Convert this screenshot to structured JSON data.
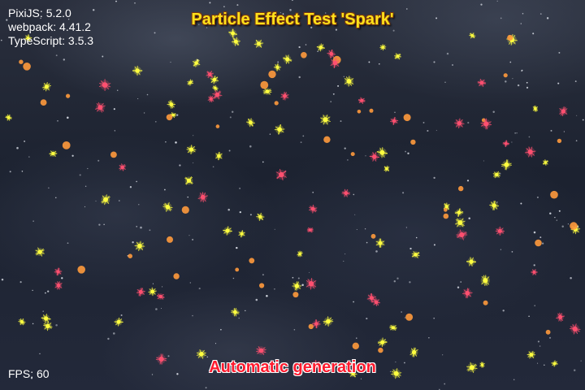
{
  "versions": [
    {
      "label": "PixiJS",
      "value": "5.2.0"
    },
    {
      "label": "webpack",
      "value": "4.41.2"
    },
    {
      "label": "TypeScript",
      "value": "3.5.3"
    }
  ],
  "title": "Particle Effect Test 'Spark'",
  "caption": "Automatic generation",
  "fps_label": "FPS:",
  "fps_value": "60",
  "colors": {
    "title": "#ffe21a",
    "caption": "#ff1a2e",
    "spark_yellow": "#ffff40",
    "spark_orange": "#ff9a3c",
    "spark_pink": "#ff5070",
    "star_white": "#e8ecf4"
  }
}
